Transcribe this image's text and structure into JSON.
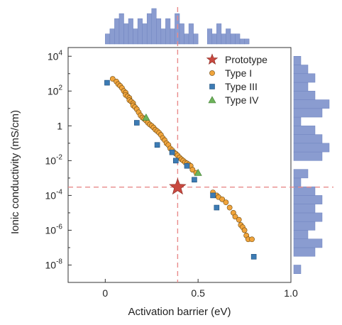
{
  "chart_data": {
    "type": "scatter",
    "title": "",
    "xlabel": "Activation barrier (eV)",
    "ylabel": "Ionic conductivity (mS/cm)",
    "xlim": [
      -0.2,
      1.0
    ],
    "ylim_log10": [
      -9,
      4.5
    ],
    "y_scale": "log",
    "x_ticks": [
      0,
      0.5,
      1.0
    ],
    "x_tick_labels": [
      "0",
      "0.5",
      "1.0"
    ],
    "y_ticks": [
      {
        "base": "10",
        "exp": "4",
        "value": 10000
      },
      {
        "base": "10",
        "exp": "2",
        "value": 100
      },
      {
        "base": "1",
        "exp": "",
        "value": 1
      },
      {
        "base": "10",
        "exp": "-2",
        "value": 0.01
      },
      {
        "base": "10",
        "exp": "-4",
        "value": 0.0001
      },
      {
        "base": "10",
        "exp": "-6",
        "value": 1e-06
      },
      {
        "base": "10",
        "exp": "-8",
        "value": 1e-08
      }
    ],
    "legend_position": "top-right",
    "grid": false,
    "marginal_histograms": true,
    "reference_lines": {
      "x": 0.39,
      "y": 0.0003
    },
    "series": [
      {
        "name": "Prototype",
        "marker": "star",
        "color": "#c8483f",
        "points": [
          [
            0.39,
            0.0003
          ]
        ]
      },
      {
        "name": "Type I",
        "marker": "circle",
        "color": "#f0a43c",
        "points": [
          [
            0.04,
            500
          ],
          [
            0.06,
            350
          ],
          [
            0.07,
            250
          ],
          [
            0.08,
            200
          ],
          [
            0.09,
            150
          ],
          [
            0.1,
            100
          ],
          [
            0.11,
            80
          ],
          [
            0.11,
            60
          ],
          [
            0.12,
            50
          ],
          [
            0.13,
            40
          ],
          [
            0.13,
            30
          ],
          [
            0.14,
            25
          ],
          [
            0.15,
            20
          ],
          [
            0.15,
            15
          ],
          [
            0.16,
            12
          ],
          [
            0.17,
            9
          ],
          [
            0.18,
            6
          ],
          [
            0.19,
            4
          ],
          [
            0.2,
            3
          ],
          [
            0.21,
            2.5
          ],
          [
            0.22,
            2
          ],
          [
            0.23,
            1.5
          ],
          [
            0.24,
            1.2
          ],
          [
            0.25,
            1.0
          ],
          [
            0.26,
            0.8
          ],
          [
            0.27,
            0.6
          ],
          [
            0.28,
            0.5
          ],
          [
            0.29,
            0.4
          ],
          [
            0.3,
            0.3
          ],
          [
            0.31,
            0.2
          ],
          [
            0.32,
            0.15
          ],
          [
            0.33,
            0.1
          ],
          [
            0.34,
            0.08
          ],
          [
            0.35,
            0.05
          ],
          [
            0.36,
            0.04
          ],
          [
            0.37,
            0.03
          ],
          [
            0.38,
            0.025
          ],
          [
            0.39,
            0.02
          ],
          [
            0.4,
            0.015
          ],
          [
            0.41,
            0.012
          ],
          [
            0.42,
            0.01
          ],
          [
            0.43,
            0.008
          ],
          [
            0.44,
            0.007
          ],
          [
            0.45,
            0.006
          ],
          [
            0.46,
            0.005
          ],
          [
            0.47,
            0.003
          ],
          [
            0.49,
            0.002
          ],
          [
            0.58,
            0.00015
          ],
          [
            0.6,
            0.0001
          ],
          [
            0.61,
            8e-05
          ],
          [
            0.63,
            6e-05
          ],
          [
            0.65,
            4e-05
          ],
          [
            0.67,
            2e-05
          ],
          [
            0.69,
            1e-05
          ],
          [
            0.7,
            6e-06
          ],
          [
            0.72,
            4e-06
          ],
          [
            0.73,
            2e-06
          ],
          [
            0.74,
            1.5e-06
          ],
          [
            0.75,
            1e-06
          ],
          [
            0.76,
            5e-07
          ],
          [
            0.77,
            3e-07
          ],
          [
            0.79,
            3e-07
          ]
        ]
      },
      {
        "name": "Type III",
        "marker": "square",
        "color": "#3c7bb4",
        "points": [
          [
            0.01,
            300
          ],
          [
            0.17,
            1.5
          ],
          [
            0.28,
            0.08
          ],
          [
            0.36,
            0.03
          ],
          [
            0.38,
            0.01
          ],
          [
            0.44,
            0.005
          ],
          [
            0.48,
            0.0008
          ],
          [
            0.58,
            0.0001
          ],
          [
            0.6,
            2e-05
          ],
          [
            0.8,
            3e-08
          ]
        ]
      },
      {
        "name": "Type IV",
        "marker": "triangle",
        "color": "#6db35a",
        "points": [
          [
            0.22,
            3
          ],
          [
            0.5,
            0.002
          ]
        ]
      }
    ],
    "top_histogram": {
      "bin_start": -0.05,
      "bin_width": 0.025,
      "counts": [
        0,
        0,
        2,
        3,
        5,
        6,
        4,
        5,
        3,
        5,
        4,
        6,
        7,
        5,
        3,
        5,
        3,
        6,
        4,
        2,
        4,
        2,
        0,
        0,
        3,
        2,
        4,
        2,
        3,
        2,
        2,
        1,
        1,
        0,
        0,
        0
      ]
    },
    "right_histogram": {
      "log_bin_start": -8.5,
      "log_bin_width": 0.5,
      "counts": [
        1,
        0,
        3,
        4,
        2,
        3,
        4,
        3,
        4,
        3,
        1,
        2,
        0,
        4,
        5,
        4,
        3,
        1,
        4,
        5,
        3,
        2,
        3,
        2,
        1,
        0
      ]
    },
    "colors": {
      "histogram": "#8a9cd0",
      "reference_line": "#e88a8a",
      "marker_edge": "#6b4a14"
    }
  }
}
